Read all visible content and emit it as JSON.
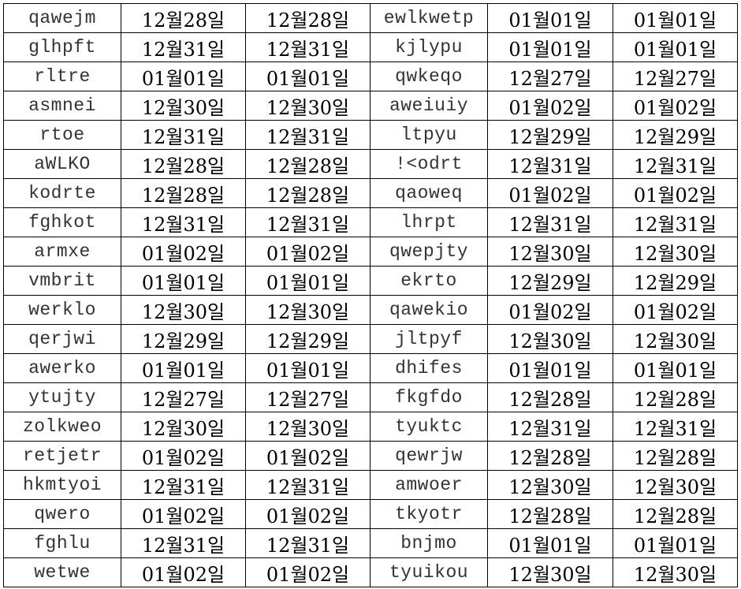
{
  "rows": [
    [
      "qawejm",
      "12월28일",
      "12월28일",
      "ewlkwetp",
      "01월01일",
      "01월01일"
    ],
    [
      "glhpft",
      "12월31일",
      "12월31일",
      "kjlypu",
      "01월01일",
      "01월01일"
    ],
    [
      "rltre",
      "01월01일",
      "01월01일",
      "qwkeqo",
      "12월27일",
      "12월27일"
    ],
    [
      "asmnei",
      "12월30일",
      "12월30일",
      "aweiuiy",
      "01월02일",
      "01월02일"
    ],
    [
      "rtoe",
      "12월31일",
      "12월31일",
      "ltpyu",
      "12월29일",
      "12월29일"
    ],
    [
      "aWLKO",
      "12월28일",
      "12월28일",
      "!<odrt",
      "12월31일",
      "12월31일"
    ],
    [
      "kodrte",
      "12월28일",
      "12월28일",
      "qaoweq",
      "01월02일",
      "01월02일"
    ],
    [
      "fghkot",
      "12월31일",
      "12월31일",
      "lhrpt",
      "12월31일",
      "12월31일"
    ],
    [
      "armxe",
      "01월02일",
      "01월02일",
      "qwepjty",
      "12월30일",
      "12월30일"
    ],
    [
      "vmbrit",
      "01월01일",
      "01월01일",
      "ekrto",
      "12월29일",
      "12월29일"
    ],
    [
      "werklo",
      "12월30일",
      "12월30일",
      "qawekio",
      "01월02일",
      "01월02일"
    ],
    [
      "qerjwi",
      "12월29일",
      "12월29일",
      "jltpyf",
      "12월30일",
      "12월30일"
    ],
    [
      "awerko",
      "01월01일",
      "01월01일",
      "dhifes",
      "01월01일",
      "01월01일"
    ],
    [
      "ytujty",
      "12월27일",
      "12월27일",
      "fkgfdo",
      "12월28일",
      "12월28일"
    ],
    [
      "zolkweo",
      "12월30일",
      "12월30일",
      "tyuktc",
      "12월31일",
      "12월31일"
    ],
    [
      "retjetr",
      "01월02일",
      "01월02일",
      "qewrjw",
      "12월28일",
      "12월28일"
    ],
    [
      "hkmtyoi",
      "12월31일",
      "12월31일",
      "amwoer",
      "12월30일",
      "12월30일"
    ],
    [
      "qwero",
      "01월02일",
      "01월02일",
      "tkyotr",
      "12월28일",
      "12월28일"
    ],
    [
      "fghlu",
      "12월31일",
      "12월31일",
      "bnjmo",
      "01월01일",
      "01월01일"
    ],
    [
      "wetwe",
      "01월02일",
      "01월02일",
      "tyuikou",
      "12월30일",
      "12월30일"
    ]
  ]
}
